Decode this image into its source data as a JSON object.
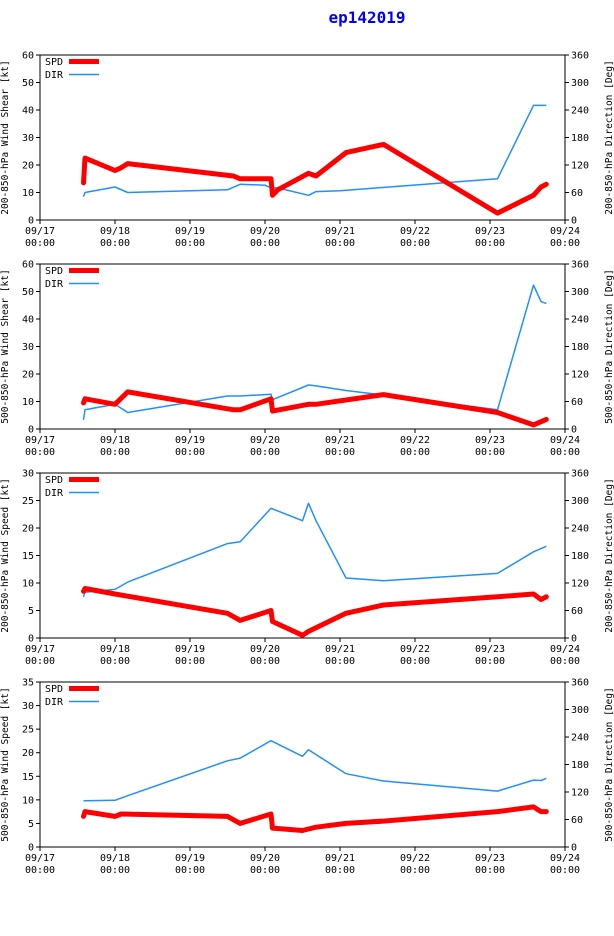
{
  "title": "ep142019",
  "colors": {
    "spd": "#ff0000",
    "dir": "#1e90ff",
    "axis": "#000000",
    "title": "#0000ff"
  },
  "legend": {
    "spd": "SPD",
    "dir": "DIR"
  },
  "x_ticks": [
    {
      "t": 0,
      "l1": "09/17",
      "l2": "00:00"
    },
    {
      "t": 1,
      "l1": "09/18",
      "l2": "00:00"
    },
    {
      "t": 2,
      "l1": "09/19",
      "l2": "00:00"
    },
    {
      "t": 3,
      "l1": "09/20",
      "l2": "00:00"
    },
    {
      "t": 4,
      "l1": "09/21",
      "l2": "00:00"
    },
    {
      "t": 5,
      "l1": "09/22",
      "l2": "00:00"
    },
    {
      "t": 6,
      "l1": "09/23",
      "l2": "00:00"
    },
    {
      "t": 7,
      "l1": "09/24",
      "l2": "00:00"
    }
  ],
  "chart_data": [
    {
      "type": "line",
      "ylabel_left": "200-850-hPa Wind Shear [kt]",
      "ylabel_right": "200-850-hPa Direction [Deg]",
      "xlim": [
        0,
        7
      ],
      "ylim_left": [
        0,
        60
      ],
      "yticks_left": [
        0,
        10,
        20,
        30,
        40,
        50,
        60
      ],
      "ylim_right": [
        0,
        360
      ],
      "yticks_right": [
        0,
        60,
        120,
        180,
        240,
        300,
        360
      ],
      "series": [
        {
          "name": "SPD",
          "axis": "left",
          "points": [
            [
              0.58,
              13.5
            ],
            [
              0.6,
              22.5
            ],
            [
              1.0,
              18
            ],
            [
              1.08,
              19
            ],
            [
              1.17,
              20.5
            ],
            [
              2.58,
              16
            ],
            [
              2.67,
              15
            ],
            [
              3.08,
              15
            ],
            [
              3.1,
              9
            ],
            [
              3.17,
              11
            ],
            [
              3.58,
              17
            ],
            [
              3.68,
              16
            ],
            [
              4.08,
              24.5
            ],
            [
              4.58,
              27.5
            ],
            [
              6.1,
              2.5
            ],
            [
              6.58,
              9
            ],
            [
              6.68,
              12
            ],
            [
              6.75,
              13
            ]
          ]
        },
        {
          "name": "DIR",
          "axis": "right",
          "points": [
            [
              0.58,
              51
            ],
            [
              0.6,
              60
            ],
            [
              1.0,
              72
            ],
            [
              1.17,
              60
            ],
            [
              2.5,
              66
            ],
            [
              2.67,
              78
            ],
            [
              3.0,
              76
            ],
            [
              3.08,
              70
            ],
            [
              3.17,
              70
            ],
            [
              3.58,
              54
            ],
            [
              3.68,
              62
            ],
            [
              4.0,
              64
            ],
            [
              6.1,
              90
            ],
            [
              6.58,
              250
            ],
            [
              6.75,
              250
            ]
          ]
        }
      ]
    },
    {
      "type": "line",
      "ylabel_left": "500-850-hPa Wind Shear [kt]",
      "ylabel_right": "500-850-hPa Direction [Deg]",
      "xlim": [
        0,
        7
      ],
      "ylim_left": [
        0,
        60
      ],
      "yticks_left": [
        0,
        10,
        20,
        30,
        40,
        50,
        60
      ],
      "ylim_right": [
        0,
        360
      ],
      "yticks_right": [
        0,
        60,
        120,
        180,
        240,
        300,
        360
      ],
      "series": [
        {
          "name": "SPD",
          "axis": "left",
          "points": [
            [
              0.58,
              9.5
            ],
            [
              0.6,
              11
            ],
            [
              1.0,
              9
            ],
            [
              1.17,
              13.5
            ],
            [
              2.58,
              7
            ],
            [
              2.67,
              7
            ],
            [
              3.08,
              11
            ],
            [
              3.1,
              6.5
            ],
            [
              3.58,
              9
            ],
            [
              3.68,
              9
            ],
            [
              4.58,
              12.5
            ],
            [
              6.1,
              6
            ],
            [
              6.58,
              1.5
            ],
            [
              6.75,
              3.5
            ]
          ]
        },
        {
          "name": "DIR",
          "axis": "right",
          "points": [
            [
              0.58,
              20
            ],
            [
              0.6,
              42
            ],
            [
              1.0,
              54
            ],
            [
              1.17,
              36
            ],
            [
              2.5,
              72
            ],
            [
              2.67,
              72
            ],
            [
              3.08,
              76
            ],
            [
              3.1,
              64
            ],
            [
              3.58,
              96
            ],
            [
              3.68,
              94
            ],
            [
              4.08,
              84
            ],
            [
              4.58,
              74
            ],
            [
              6.1,
              42
            ],
            [
              6.58,
              314
            ],
            [
              6.68,
              278
            ],
            [
              6.75,
              274
            ]
          ]
        }
      ]
    },
    {
      "type": "line",
      "ylabel_left": "200-850-hPa Wind Speed [kt]",
      "ylabel_right": "200-850-hPa Direction [Deg]",
      "xlim": [
        0,
        7
      ],
      "ylim_left": [
        0,
        30
      ],
      "yticks_left": [
        0,
        5,
        10,
        15,
        20,
        25,
        30
      ],
      "ylim_right": [
        0,
        360
      ],
      "yticks_right": [
        0,
        60,
        120,
        180,
        240,
        300,
        360
      ],
      "series": [
        {
          "name": "SPD",
          "axis": "left",
          "points": [
            [
              0.58,
              8.5
            ],
            [
              0.6,
              9
            ],
            [
              1.0,
              8
            ],
            [
              2.5,
              4.5
            ],
            [
              2.67,
              3.2
            ],
            [
              3.08,
              5
            ],
            [
              3.1,
              3
            ],
            [
              3.5,
              0.5
            ],
            [
              3.58,
              1.2
            ],
            [
              4.08,
              4.5
            ],
            [
              4.58,
              6
            ],
            [
              6.1,
              7.5
            ],
            [
              6.58,
              8
            ],
            [
              6.68,
              7
            ],
            [
              6.75,
              7.5
            ]
          ]
        },
        {
          "name": "DIR",
          "axis": "right",
          "points": [
            [
              0.58,
              90
            ],
            [
              0.6,
              100
            ],
            [
              1.0,
              106
            ],
            [
              1.17,
              122
            ],
            [
              2.5,
              206
            ],
            [
              2.67,
              210
            ],
            [
              3.08,
              283
            ],
            [
              3.5,
              256
            ],
            [
              3.58,
              294
            ],
            [
              3.68,
              256
            ],
            [
              4.08,
              131
            ],
            [
              4.58,
              125
            ],
            [
              6.1,
              141
            ],
            [
              6.58,
              188
            ],
            [
              6.75,
              200
            ]
          ]
        }
      ]
    },
    {
      "type": "line",
      "ylabel_left": "500-850-hPa Wind Speed [kt]",
      "ylabel_right": "500-850-hPa Direction [Deg]",
      "xlim": [
        0,
        7
      ],
      "ylim_left": [
        0,
        35
      ],
      "yticks_left": [
        0,
        5,
        10,
        15,
        20,
        25,
        30,
        35
      ],
      "ylim_right": [
        0,
        360
      ],
      "yticks_right": [
        0,
        60,
        120,
        180,
        240,
        300,
        360
      ],
      "series": [
        {
          "name": "SPD",
          "axis": "left",
          "points": [
            [
              0.58,
              6.5
            ],
            [
              0.6,
              7.5
            ],
            [
              1.0,
              6.5
            ],
            [
              1.08,
              7
            ],
            [
              2.5,
              6.5
            ],
            [
              2.67,
              5
            ],
            [
              3.08,
              7
            ],
            [
              3.1,
              4
            ],
            [
              3.5,
              3.5
            ],
            [
              3.68,
              4.2
            ],
            [
              4.08,
              5
            ],
            [
              4.58,
              5.5
            ],
            [
              6.1,
              7.5
            ],
            [
              6.58,
              8.5
            ],
            [
              6.68,
              7.5
            ],
            [
              6.75,
              7.5
            ]
          ]
        },
        {
          "name": "DIR",
          "axis": "right",
          "points": [
            [
              0.58,
              100
            ],
            [
              0.6,
              101
            ],
            [
              1.0,
              102
            ],
            [
              1.17,
              112
            ],
            [
              2.5,
              188
            ],
            [
              2.67,
              194
            ],
            [
              3.08,
              232
            ],
            [
              3.5,
              198
            ],
            [
              3.58,
              212
            ],
            [
              4.08,
              160
            ],
            [
              4.58,
              144
            ],
            [
              6.1,
              122
            ],
            [
              6.58,
              146
            ],
            [
              6.68,
              145
            ],
            [
              6.75,
              150
            ]
          ]
        }
      ]
    }
  ]
}
